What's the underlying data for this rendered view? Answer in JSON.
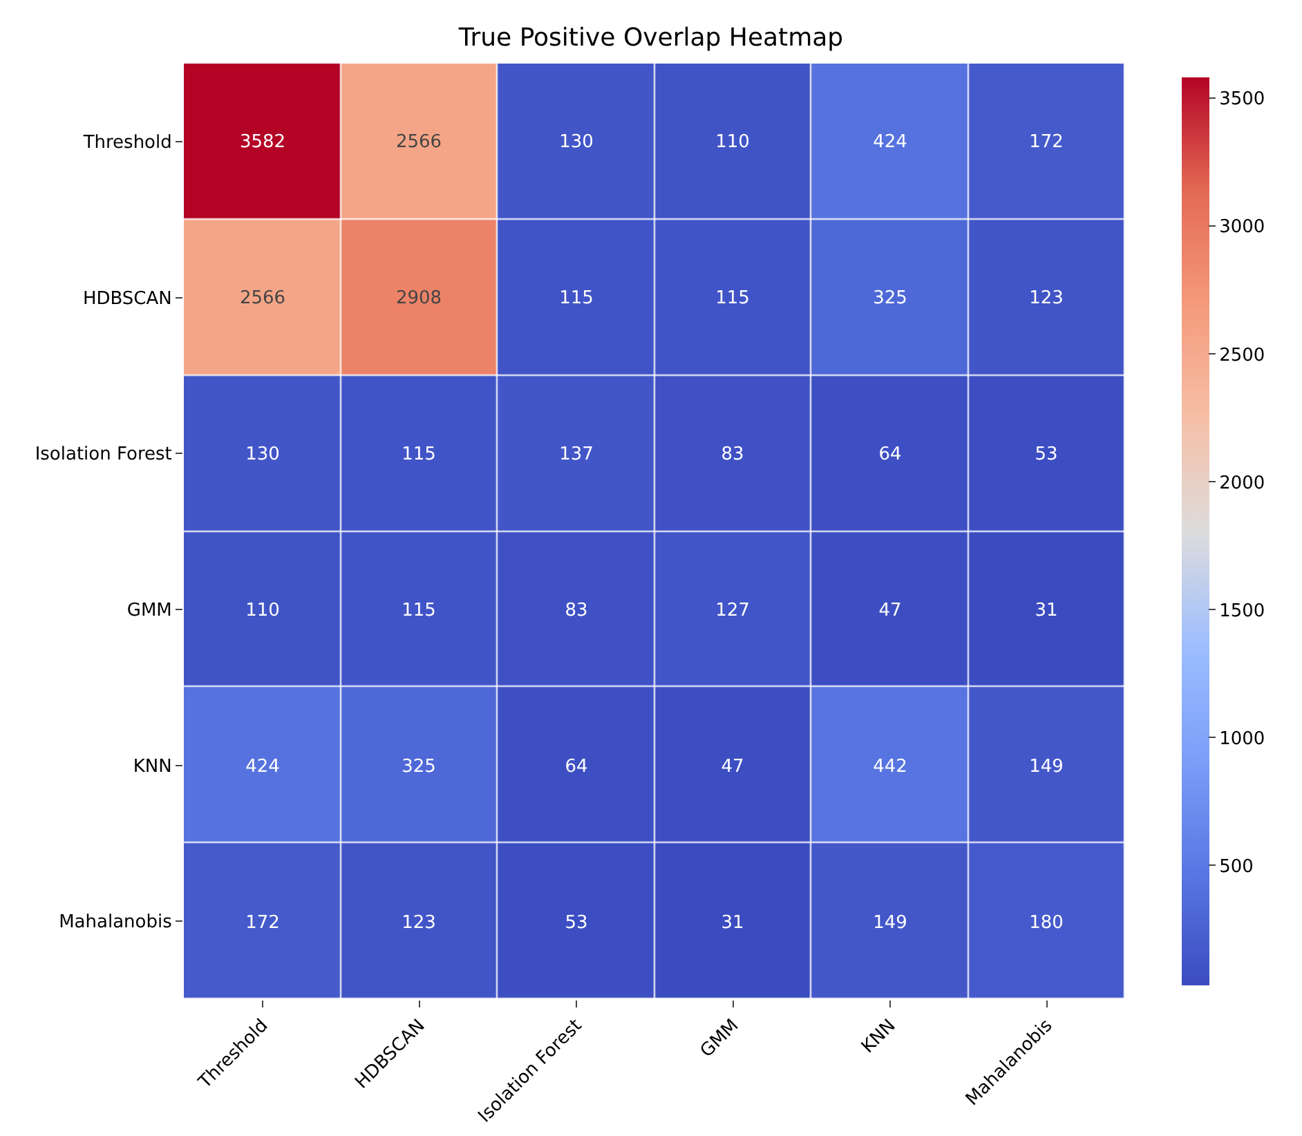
{
  "chart_data": {
    "type": "heatmap",
    "title": "True Positive Overlap Heatmap",
    "categories": [
      "Threshold",
      "HDBSCAN",
      "Isolation Forest",
      "GMM",
      "KNN",
      "Mahalanobis"
    ],
    "y_categories": [
      "Threshold",
      "HDBSCAN",
      "Isolation Forest",
      "GMM",
      "KNN",
      "Mahalanobis"
    ],
    "cells": [
      [
        3582,
        2566,
        130,
        110,
        424,
        172
      ],
      [
        2566,
        2908,
        115,
        115,
        325,
        123
      ],
      [
        130,
        115,
        137,
        83,
        64,
        53
      ],
      [
        110,
        115,
        83,
        127,
        47,
        31
      ],
      [
        424,
        325,
        64,
        47,
        442,
        149
      ],
      [
        172,
        123,
        53,
        31,
        149,
        180
      ]
    ],
    "clim": [
      31,
      3582
    ],
    "cticks": [
      500,
      1000,
      1500,
      2000,
      2500,
      3000,
      3500
    ],
    "data_labels": true
  }
}
